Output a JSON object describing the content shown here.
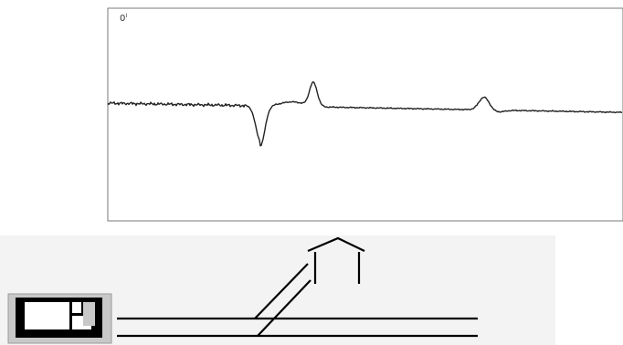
{
  "plot": {
    "corner_label": "0",
    "corner_superscript": "I",
    "colors": {
      "frame": "#7a7a7a",
      "trace": "#222222",
      "background": "#ffffff"
    }
  },
  "lower_panel": {
    "colors": {
      "panel_background": "#f2f2f2",
      "line": "#000000",
      "device_body": "#c8c8c8"
    }
  }
}
